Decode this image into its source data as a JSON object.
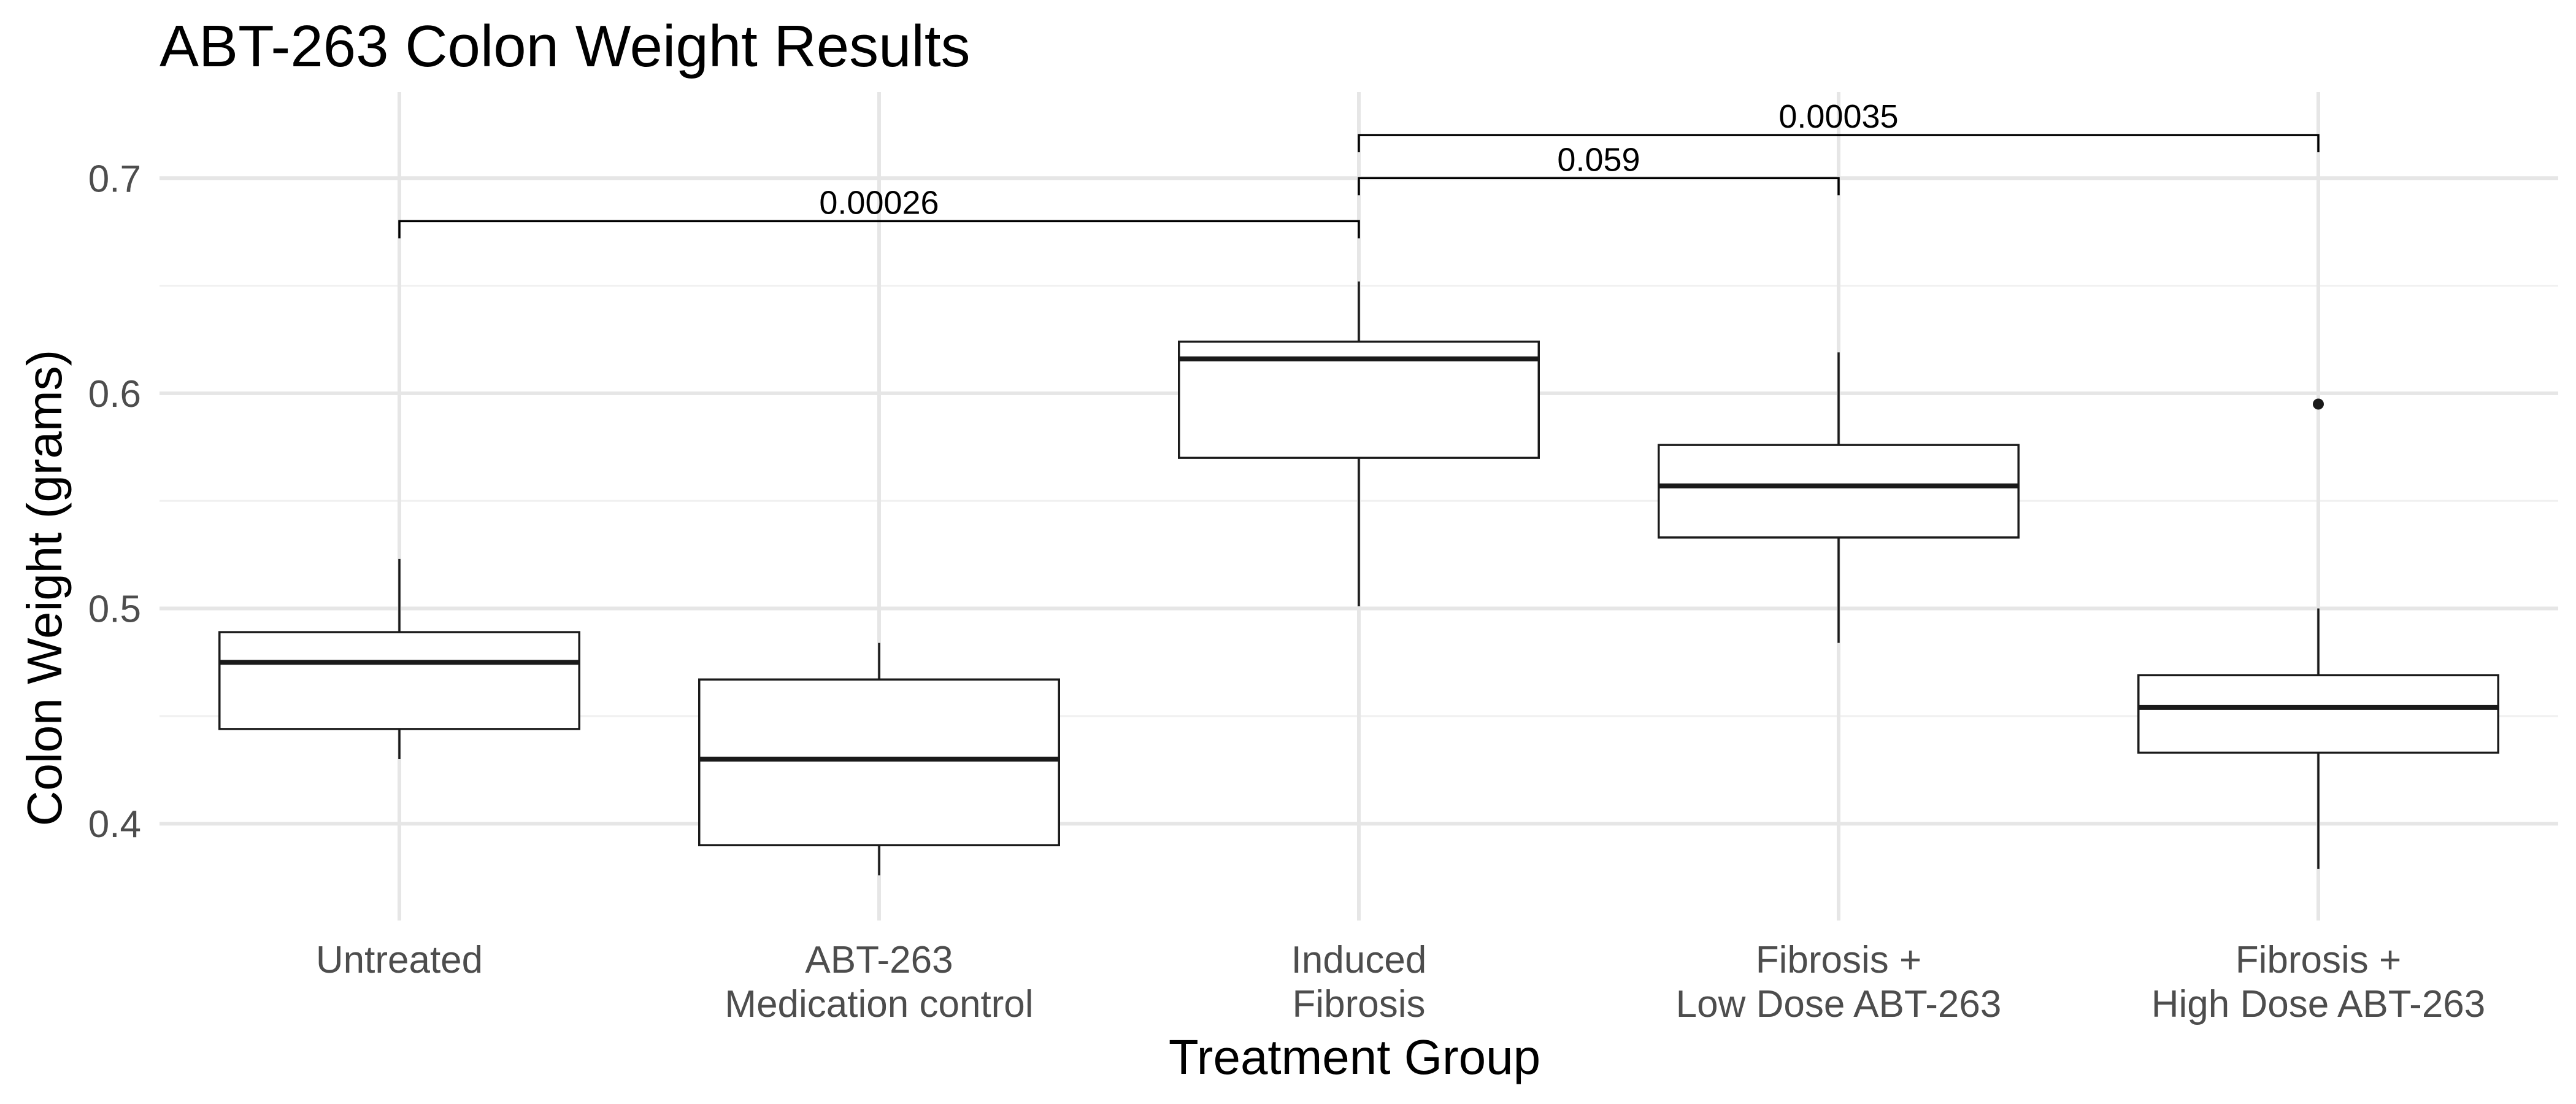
{
  "chart_data": {
    "type": "box",
    "title": "ABT-263 Colon Weight Results",
    "xlabel": "Treatment Group",
    "ylabel": "Colon Weight (grams)",
    "ylim": [
      0.355,
      0.74
    ],
    "yticks": [
      0.4,
      0.5,
      0.6,
      0.7
    ],
    "ytick_labels": [
      "0.4",
      "0.5",
      "0.6",
      "0.7"
    ],
    "grid": true,
    "groups": [
      {
        "label_lines": [
          "Untreated"
        ],
        "whisker_low": 0.43,
        "q1": 0.444,
        "median": 0.475,
        "q3": 0.489,
        "whisker_high": 0.523,
        "outliers": []
      },
      {
        "label_lines": [
          "ABT-263",
          "Medication control"
        ],
        "whisker_low": 0.376,
        "q1": 0.39,
        "median": 0.43,
        "q3": 0.467,
        "whisker_high": 0.484,
        "outliers": []
      },
      {
        "label_lines": [
          "Induced",
          "Fibrosis"
        ],
        "whisker_low": 0.501,
        "q1": 0.57,
        "median": 0.616,
        "q3": 0.624,
        "whisker_high": 0.652,
        "outliers": []
      },
      {
        "label_lines": [
          "Fibrosis +",
          "Low Dose ABT-263"
        ],
        "whisker_low": 0.484,
        "q1": 0.533,
        "median": 0.557,
        "q3": 0.576,
        "whisker_high": 0.619,
        "outliers": []
      },
      {
        "label_lines": [
          "Fibrosis +",
          "High Dose ABT-263"
        ],
        "whisker_low": 0.379,
        "q1": 0.433,
        "median": 0.454,
        "q3": 0.469,
        "whisker_high": 0.5,
        "outliers": [
          0.595
        ]
      }
    ],
    "comparisons": [
      {
        "from": 0,
        "to": 2,
        "y": 0.68,
        "label": "0.00026"
      },
      {
        "from": 2,
        "to": 3,
        "y": 0.7,
        "label": "0.059"
      },
      {
        "from": 2,
        "to": 4,
        "y": 0.72,
        "label": "0.00035"
      }
    ]
  }
}
